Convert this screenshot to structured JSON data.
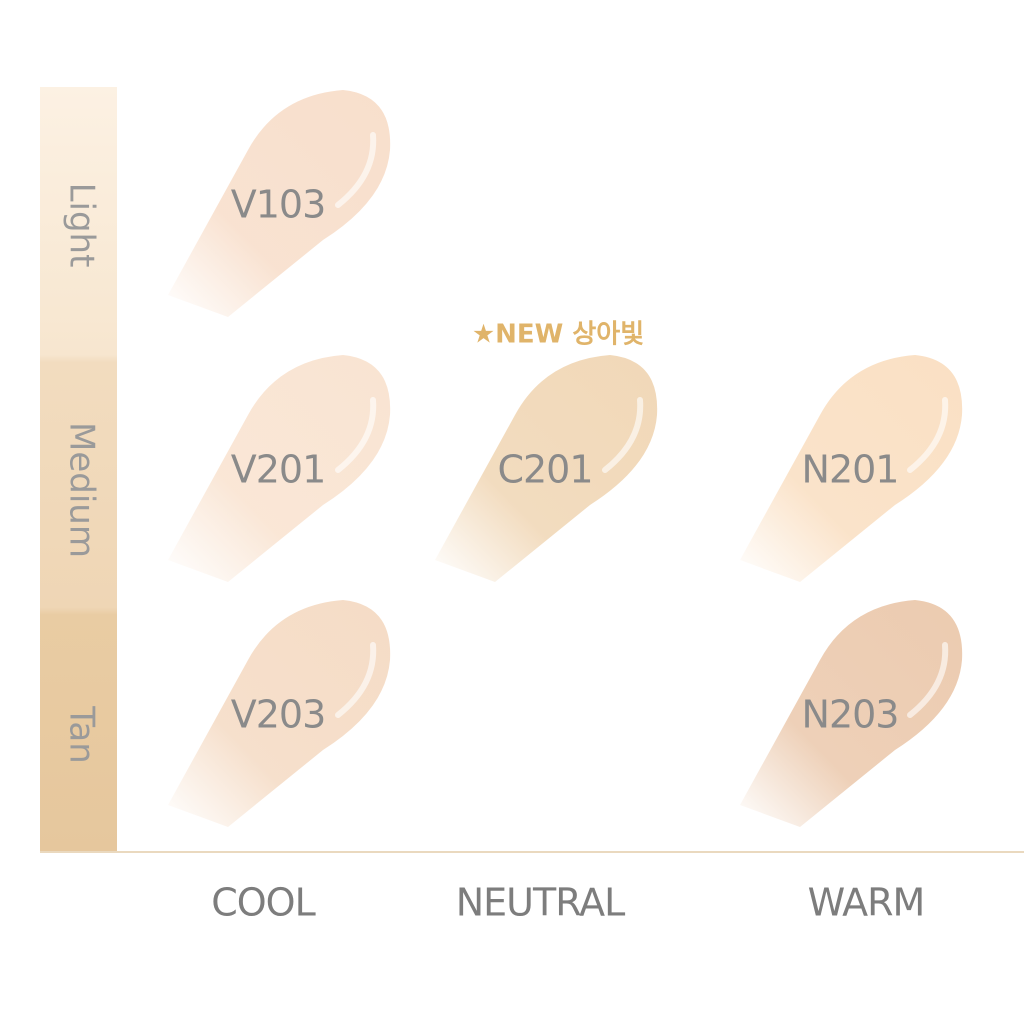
{
  "rows": [
    "Light",
    "Medium",
    "Tan"
  ],
  "columns": [
    "COOL",
    "NEUTRAL",
    "WARM"
  ],
  "badge": "★NEW 상아빛",
  "grid": [
    [
      {
        "label": "V103",
        "color": "#f8dfcc"
      },
      null,
      null
    ],
    [
      {
        "label": "V201",
        "color": "#f9e4d2"
      },
      {
        "label": "C201",
        "color": "#f1d8b8"
      },
      {
        "label": "N201",
        "color": "#fae0c4"
      }
    ],
    [
      {
        "label": "V203",
        "color": "#f5dcc6"
      },
      null,
      {
        "label": "N203",
        "color": "#eccbb0"
      }
    ]
  ]
}
